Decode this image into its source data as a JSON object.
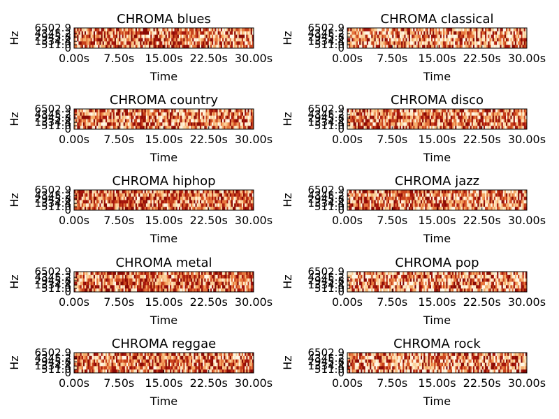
{
  "chart_data": [
    {
      "type": "heatmap",
      "title": "CHROMA blues",
      "xlabel": "Time",
      "ylabel": "Hz",
      "xticks": [
        "0.00s",
        "7.50s",
        "15.00s",
        "22.50s",
        "30.00s"
      ],
      "yticks": [
        "0",
        "511.0",
        "1334.4",
        "2945.8",
        "4345.2",
        "6502.9"
      ],
      "xlim": [
        0,
        30
      ],
      "colormap": "white-to-darkred"
    },
    {
      "type": "heatmap",
      "title": "CHROMA classical",
      "xlabel": "Time",
      "ylabel": "Hz",
      "xticks": [
        "0.00s",
        "7.50s",
        "15.00s",
        "22.50s",
        "30.00s"
      ],
      "yticks": [
        "0",
        "511.0",
        "1334.4",
        "2945.8",
        "4345.2",
        "6502.9"
      ],
      "xlim": [
        0,
        30
      ],
      "colormap": "white-to-darkred"
    },
    {
      "type": "heatmap",
      "title": "CHROMA country",
      "xlabel": "Time",
      "ylabel": "Hz",
      "xticks": [
        "0.00s",
        "7.50s",
        "15.00s",
        "22.50s",
        "30.00s"
      ],
      "yticks": [
        "0",
        "511.0",
        "1334.4",
        "2945.8",
        "4345.2",
        "6502.9"
      ],
      "xlim": [
        0,
        30
      ],
      "colormap": "white-to-darkred"
    },
    {
      "type": "heatmap",
      "title": "CHROMA disco",
      "xlabel": "Time",
      "ylabel": "Hz",
      "xticks": [
        "0.00s",
        "7.50s",
        "15.00s",
        "22.50s",
        "30.00s"
      ],
      "yticks": [
        "0",
        "511.0",
        "1334.4",
        "2945.8",
        "4345.2",
        "6502.9"
      ],
      "xlim": [
        0,
        30
      ],
      "colormap": "white-to-darkred"
    },
    {
      "type": "heatmap",
      "title": "CHROMA hiphop",
      "xlabel": "Time",
      "ylabel": "Hz",
      "xticks": [
        "0.00s",
        "7.50s",
        "15.00s",
        "22.50s",
        "30.00s"
      ],
      "yticks": [
        "0",
        "511.0",
        "1334.4",
        "2945.8",
        "4345.2",
        "6502.9"
      ],
      "xlim": [
        0,
        30
      ],
      "colormap": "white-to-darkred"
    },
    {
      "type": "heatmap",
      "title": "CHROMA jazz",
      "xlabel": "Time",
      "ylabel": "Hz",
      "xticks": [
        "0.00s",
        "7.50s",
        "15.00s",
        "22.50s",
        "30.00s"
      ],
      "yticks": [
        "0",
        "511.0",
        "1334.4",
        "2945.8",
        "4345.2",
        "6502.9"
      ],
      "xlim": [
        0,
        30
      ],
      "colormap": "white-to-darkred"
    },
    {
      "type": "heatmap",
      "title": "CHROMA metal",
      "xlabel": "Time",
      "ylabel": "Hz",
      "xticks": [
        "0.00s",
        "7.50s",
        "15.00s",
        "22.50s",
        "30.00s"
      ],
      "yticks": [
        "0",
        "511.0",
        "1334.4",
        "2945.8",
        "4345.2",
        "6502.9"
      ],
      "xlim": [
        0,
        30
      ],
      "colormap": "white-to-darkred"
    },
    {
      "type": "heatmap",
      "title": "CHROMA pop",
      "xlabel": "Time",
      "ylabel": "Hz",
      "xticks": [
        "0.00s",
        "7.50s",
        "15.00s",
        "22.50s",
        "30.00s"
      ],
      "yticks": [
        "0",
        "511.0",
        "1334.4",
        "2945.8",
        "4345.2",
        "6502.9"
      ],
      "xlim": [
        0,
        30
      ],
      "colormap": "white-to-darkred"
    },
    {
      "type": "heatmap",
      "title": "CHROMA reggae",
      "xlabel": "Time",
      "ylabel": "Hz",
      "xticks": [
        "0.00s",
        "7.50s",
        "15.00s",
        "22.50s",
        "30.00s"
      ],
      "yticks": [
        "0",
        "511.0",
        "1334.4",
        "2945.8",
        "4345.2",
        "6502.9"
      ],
      "xlim": [
        0,
        30
      ],
      "colormap": "white-to-darkred"
    },
    {
      "type": "heatmap",
      "title": "CHROMA rock",
      "xlabel": "Time",
      "ylabel": "Hz",
      "xticks": [
        "0.00s",
        "7.50s",
        "15.00s",
        "22.50s",
        "30.00s"
      ],
      "yticks": [
        "0",
        "511.0",
        "1334.4",
        "2945.8",
        "4345.2",
        "6502.9"
      ],
      "xlim": [
        0,
        30
      ],
      "colormap": "white-to-darkred"
    }
  ]
}
